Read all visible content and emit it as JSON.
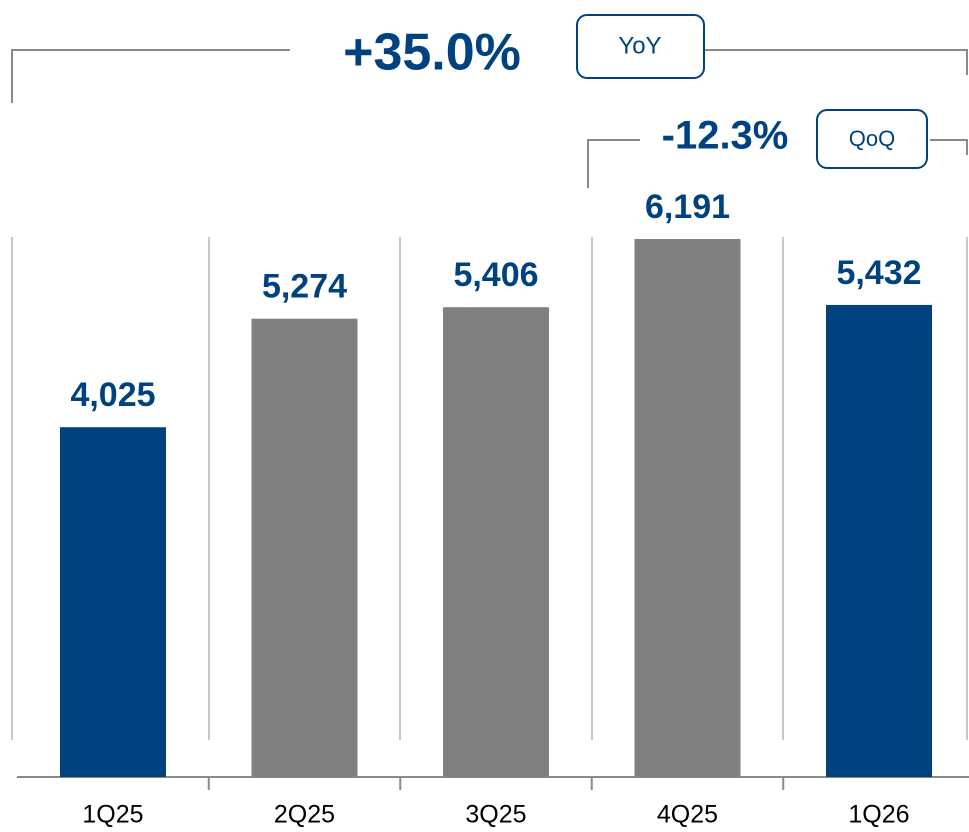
{
  "chart_data": {
    "type": "bar",
    "categories": [
      "1Q25",
      "2Q25",
      "3Q25",
      "4Q25",
      "1Q26"
    ],
    "values": [
      4025,
      5274,
      5406,
      6191,
      5432
    ],
    "value_labels": [
      "4,025",
      "5,274",
      "5,406",
      "6,191",
      "5,432"
    ],
    "colors": [
      "#00427f",
      "#808080",
      "#808080",
      "#808080",
      "#00427f"
    ],
    "annotations": [
      {
        "text": "+35.0%",
        "tag": "YoY"
      },
      {
        "text": "-12.3%",
        "tag": "QoQ"
      }
    ]
  }
}
